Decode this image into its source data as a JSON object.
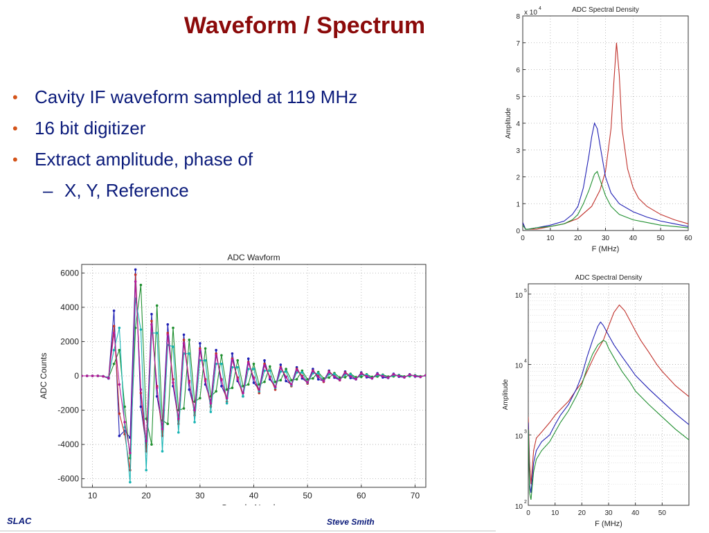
{
  "slide": {
    "title": "Waveform / Spectrum",
    "bullets": [
      "Cavity IF waveform sampled at 119 MHz",
      "16 bit digitizer",
      "Extract amplitude, phase of"
    ],
    "sub_bullets": [
      "X, Y, Reference"
    ],
    "footer_left": "SLAC",
    "footer_center": "Steve Smith"
  },
  "colors": {
    "title": "#8b0a0a",
    "body": "#0a1a7a",
    "bullet": "#d4541a",
    "blue": "#1f1fb4",
    "red": "#c0302a",
    "green": "#1f8f2f",
    "cyan": "#18b4b4",
    "magenta": "#b4189a"
  },
  "chart_data": [
    {
      "id": "waveform",
      "type": "line",
      "title": "ADC Wavform",
      "xlabel": "Sample Number",
      "ylabel": "ADC Counts",
      "xlim": [
        8,
        72
      ],
      "ylim": [
        -6500,
        6500
      ],
      "xticks": [
        10,
        20,
        30,
        40,
        50,
        60,
        70
      ],
      "yticks": [
        -6000,
        -4000,
        -2000,
        0,
        2000,
        4000,
        6000
      ],
      "grid": true,
      "markers": true,
      "series": [
        {
          "color": "#1f1fb4",
          "x": [
            8,
            9,
            10,
            11,
            12,
            13,
            14,
            15,
            16,
            17,
            18,
            19,
            20,
            21,
            22,
            23,
            24,
            25,
            26,
            27,
            28,
            29,
            30,
            31,
            32,
            33,
            34,
            35,
            36,
            37,
            38,
            39,
            40,
            41,
            42,
            43,
            44,
            45,
            46,
            47,
            48,
            49,
            50,
            51,
            52,
            53,
            54,
            55,
            56,
            57,
            58,
            59,
            60,
            61,
            62,
            63,
            64,
            65,
            66,
            67,
            68,
            69,
            70,
            71,
            72
          ],
          "y": [
            0,
            0,
            0,
            0,
            -30,
            -150,
            3800,
            -3500,
            -3200,
            -3600,
            6200,
            -1800,
            -4100,
            3600,
            -1200,
            -3000,
            3000,
            -600,
            -2600,
            2400,
            -800,
            -2000,
            1900,
            -500,
            -1500,
            1500,
            -600,
            -1300,
            1300,
            -300,
            -1000,
            1000,
            -400,
            -800,
            900,
            -200,
            -650,
            650,
            -300,
            -500,
            500,
            -150,
            -400,
            400,
            -200,
            -300,
            300,
            -100,
            -250,
            250,
            -120,
            -200,
            200,
            -80,
            -150,
            150,
            -90,
            -120,
            120,
            -50,
            -90,
            90,
            -40,
            -60,
            40
          ]
        },
        {
          "color": "#c0302a",
          "x": [
            8,
            9,
            10,
            11,
            12,
            13,
            14,
            15,
            16,
            17,
            18,
            19,
            20,
            21,
            22,
            23,
            24,
            25,
            26,
            27,
            28,
            29,
            30,
            31,
            32,
            33,
            34,
            35,
            36,
            37,
            38,
            39,
            40,
            41,
            42,
            43,
            44,
            45,
            46,
            47,
            48,
            49,
            50,
            51,
            52,
            53,
            54,
            55,
            56,
            57,
            58,
            59,
            60,
            61,
            62,
            63,
            64,
            65,
            66,
            67,
            68,
            69,
            70,
            71,
            72
          ],
          "y": [
            0,
            0,
            0,
            0,
            -30,
            -120,
            2900,
            -2200,
            -3400,
            -5500,
            5900,
            -1000,
            -4400,
            3200,
            -600,
            -3500,
            2500,
            -200,
            -2800,
            2100,
            -300,
            -2300,
            1600,
            -200,
            -1800,
            1300,
            -200,
            -1500,
            1000,
            -100,
            -1200,
            800,
            -100,
            -1000,
            700,
            -50,
            -800,
            500,
            -50,
            -600,
            400,
            0,
            -450,
            300,
            0,
            -350,
            250,
            0,
            -250,
            200,
            0,
            -180,
            150,
            0,
            -130,
            100,
            0,
            -100,
            80,
            0,
            -70,
            60,
            0,
            -50,
            30
          ]
        },
        {
          "color": "#1f8f2f",
          "x": [
            8,
            9,
            10,
            11,
            12,
            13,
            14,
            15,
            16,
            17,
            18,
            19,
            20,
            21,
            22,
            23,
            24,
            25,
            26,
            27,
            28,
            29,
            30,
            31,
            32,
            33,
            34,
            35,
            36,
            37,
            38,
            39,
            40,
            41,
            42,
            43,
            44,
            45,
            46,
            47,
            48,
            49,
            50,
            51,
            52,
            53,
            54,
            55,
            56,
            57,
            58,
            59,
            60,
            61,
            62,
            63,
            64,
            65,
            66,
            67,
            68,
            69,
            70,
            71,
            72
          ],
          "y": [
            0,
            0,
            0,
            0,
            -20,
            -100,
            700,
            1500,
            -1800,
            -4800,
            2800,
            5300,
            -2500,
            -4000,
            4100,
            -2600,
            -2800,
            2800,
            -2000,
            -1900,
            2100,
            -1500,
            -1300,
            1600,
            -1200,
            -900,
            1200,
            -800,
            -700,
            900,
            -600,
            -500,
            700,
            -500,
            -350,
            550,
            -350,
            -250,
            400,
            -250,
            -200,
            300,
            -200,
            -150,
            220,
            -150,
            -100,
            160,
            -100,
            -80,
            120,
            -80,
            -60,
            90,
            -60,
            -40,
            70,
            -40,
            -30,
            50,
            -30,
            -20,
            40,
            -20,
            20
          ]
        },
        {
          "color": "#18b4b4",
          "x": [
            8,
            9,
            10,
            11,
            12,
            13,
            14,
            15,
            16,
            17,
            18,
            19,
            20,
            21,
            22,
            23,
            24,
            25,
            26,
            27,
            28,
            29,
            30,
            31,
            32,
            33,
            34,
            35,
            36,
            37,
            38,
            39,
            40,
            41,
            42,
            43,
            44,
            45,
            46,
            47,
            48,
            49,
            50,
            51,
            52,
            53,
            54,
            55,
            56,
            57,
            58,
            59,
            60,
            61,
            62,
            63,
            64,
            65,
            66,
            67,
            68,
            69,
            70,
            71,
            72
          ],
          "y": [
            0,
            0,
            0,
            0,
            -20,
            -80,
            1500,
            2800,
            -3000,
            -6200,
            4500,
            2700,
            -5500,
            2500,
            2500,
            -4400,
            1800,
            1700,
            -3300,
            1300,
            1300,
            -2700,
            900,
            900,
            -2100,
            700,
            700,
            -1600,
            500,
            500,
            -1200,
            400,
            400,
            -900,
            300,
            300,
            -700,
            250,
            250,
            -550,
            200,
            200,
            -400,
            150,
            150,
            -300,
            100,
            100,
            -230,
            80,
            80,
            -170,
            60,
            60,
            -130,
            40,
            40,
            -100,
            30,
            30,
            -70,
            20,
            20,
            -50,
            10
          ]
        },
        {
          "color": "#b4189a",
          "x": [
            8,
            9,
            10,
            11,
            12,
            13,
            14,
            15,
            16,
            17,
            18,
            19,
            20,
            21,
            22,
            23,
            24,
            25,
            26,
            27,
            28,
            29,
            30,
            31,
            32,
            33,
            34,
            35,
            36,
            37,
            38,
            39,
            40,
            41,
            42,
            43,
            44,
            45,
            46,
            47,
            48,
            49,
            50,
            51,
            52,
            53,
            54,
            55,
            56,
            57,
            58,
            59,
            60,
            61,
            62,
            63,
            64,
            65,
            66,
            67,
            68,
            69,
            70,
            71,
            72
          ],
          "y": [
            0,
            0,
            0,
            0,
            -25,
            -120,
            2500,
            -500,
            -2700,
            -4500,
            5500,
            -800,
            -3800,
            3000,
            -700,
            -3100,
            2400,
            -400,
            -2500,
            1900,
            -400,
            -2000,
            1500,
            -300,
            -1600,
            1200,
            -250,
            -1300,
            950,
            -200,
            -1000,
            750,
            -150,
            -800,
            600,
            -100,
            -650,
            450,
            -80,
            -500,
            350,
            -60,
            -380,
            280,
            -50,
            -300,
            220,
            -40,
            -230,
            170,
            -30,
            -180,
            130,
            -20,
            -140,
            100,
            -15,
            -100,
            80,
            -10,
            -80,
            60,
            -5,
            -60,
            30
          ]
        }
      ]
    },
    {
      "id": "spectral_linear",
      "type": "line",
      "title": "ADC Spectral Density",
      "xlabel": "F (MHz)",
      "ylabel": "Amplitude",
      "exponent_label": "x 10",
      "exponent_value": "4",
      "xlim": [
        0,
        60
      ],
      "ylim": [
        0,
        8
      ],
      "xticks": [
        0,
        10,
        20,
        30,
        40,
        50,
        60
      ],
      "yticks": [
        0,
        1,
        2,
        3,
        4,
        5,
        6,
        7,
        8
      ],
      "grid": true,
      "series": [
        {
          "color": "#c0302a",
          "x": [
            0,
            1,
            2,
            5,
            10,
            15,
            20,
            25,
            28,
            30,
            32,
            33,
            34,
            35,
            36,
            38,
            40,
            42,
            45,
            50,
            55,
            60
          ],
          "y": [
            0.3,
            0.05,
            0.05,
            0.05,
            0.15,
            0.25,
            0.45,
            0.9,
            1.5,
            2.2,
            3.8,
            5.5,
            7.0,
            5.8,
            3.8,
            2.3,
            1.6,
            1.2,
            0.9,
            0.6,
            0.4,
            0.25
          ]
        },
        {
          "color": "#1f1fb4",
          "x": [
            0,
            1,
            2,
            5,
            10,
            15,
            18,
            20,
            22,
            24,
            25,
            26,
            27,
            28,
            29,
            30,
            32,
            35,
            40,
            45,
            50,
            55,
            60
          ],
          "y": [
            0.3,
            0.05,
            0.05,
            0.1,
            0.2,
            0.35,
            0.6,
            0.9,
            1.6,
            2.8,
            3.5,
            4.0,
            3.8,
            3.2,
            2.6,
            2.0,
            1.4,
            1.0,
            0.7,
            0.5,
            0.35,
            0.25,
            0.15
          ]
        },
        {
          "color": "#1f8f2f",
          "x": [
            0,
            1,
            2,
            5,
            10,
            15,
            18,
            20,
            22,
            24,
            26,
            27,
            28,
            29,
            30,
            32,
            35,
            40,
            45,
            50,
            55,
            60
          ],
          "y": [
            0.2,
            0.05,
            0.05,
            0.1,
            0.15,
            0.25,
            0.4,
            0.6,
            1.0,
            1.5,
            2.1,
            2.2,
            1.9,
            1.6,
            1.3,
            0.9,
            0.6,
            0.4,
            0.3,
            0.2,
            0.15,
            0.1
          ]
        }
      ]
    },
    {
      "id": "spectral_log",
      "type": "line",
      "title": "ADC Spectral Density",
      "xlabel": "F (MHz)",
      "ylabel": "Amplitude",
      "yscale": "log",
      "xlim": [
        0,
        60
      ],
      "ylim": [
        100,
        140000
      ],
      "xticks": [
        0,
        10,
        20,
        30,
        40,
        50
      ],
      "yticks": [
        100,
        1000,
        10000,
        100000
      ],
      "yticklabels": [
        {
          "base": "10",
          "exp": "2"
        },
        {
          "base": "10",
          "exp": "3"
        },
        {
          "base": "10",
          "exp": "4"
        },
        {
          "base": "10",
          "exp": "5"
        }
      ],
      "grid": true,
      "series": [
        {
          "color": "#c0302a",
          "x": [
            0,
            0.5,
            1,
            2,
            3,
            5,
            8,
            10,
            12,
            15,
            18,
            20,
            22,
            25,
            28,
            30,
            32,
            34,
            36,
            38,
            40,
            42,
            45,
            48,
            50,
            55,
            60
          ],
          "y": [
            1800,
            400,
            200,
            600,
            900,
            1100,
            1500,
            1900,
            2300,
            3000,
            4400,
            5500,
            8000,
            14000,
            22000,
            35000,
            55000,
            70000,
            58000,
            42000,
            30000,
            22000,
            15000,
            10000,
            8000,
            5000,
            3500
          ]
        },
        {
          "color": "#1f1fb4",
          "x": [
            0,
            0.5,
            1,
            2,
            3,
            5,
            8,
            10,
            12,
            15,
            18,
            20,
            22,
            24,
            26,
            27,
            28,
            30,
            32,
            35,
            38,
            40,
            45,
            50,
            55,
            60
          ],
          "y": [
            1500,
            200,
            150,
            400,
            600,
            800,
            1000,
            1400,
            1900,
            2700,
            4500,
            7000,
            13000,
            22000,
            35000,
            40000,
            36000,
            26000,
            19000,
            13000,
            9000,
            7000,
            4500,
            3000,
            2000,
            1400
          ]
        },
        {
          "color": "#1f8f2f",
          "x": [
            0,
            0.5,
            1,
            2,
            3,
            5,
            8,
            10,
            12,
            15,
            18,
            20,
            22,
            24,
            26,
            28,
            29,
            30,
            32,
            35,
            38,
            40,
            45,
            50,
            55,
            60
          ],
          "y": [
            1200,
            150,
            120,
            300,
            450,
            600,
            800,
            1100,
            1500,
            2200,
            3600,
            5200,
            9000,
            14000,
            19000,
            22000,
            21000,
            17000,
            12500,
            8000,
            5600,
            4200,
            2700,
            1800,
            1200,
            850
          ]
        }
      ]
    }
  ]
}
